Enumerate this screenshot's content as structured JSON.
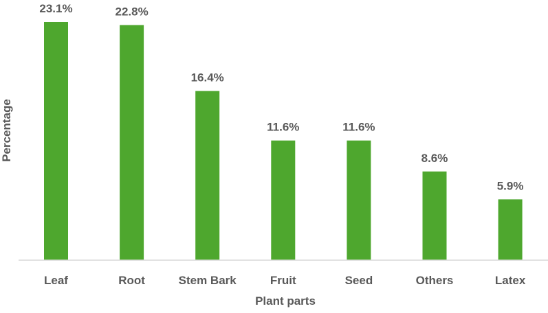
{
  "chart_data": {
    "type": "bar",
    "title": "",
    "xlabel": "Plant parts",
    "ylabel": "Percentage",
    "categories": [
      "Leaf",
      "Root",
      "Stem Bark",
      "Fruit",
      "Seed",
      "Others",
      "Latex"
    ],
    "values": [
      23.1,
      22.8,
      16.4,
      11.6,
      11.6,
      8.6,
      5.9
    ],
    "data_labels": [
      "23.1%",
      "22.8%",
      "16.4%",
      "11.6%",
      "11.6%",
      "8.6%",
      "5.9%"
    ],
    "ylim": [
      0,
      25
    ],
    "grid": false,
    "legend": "none",
    "bar_color": "#4EA72E",
    "axis_color": "#D9D9D9",
    "text_color": "#595959"
  }
}
